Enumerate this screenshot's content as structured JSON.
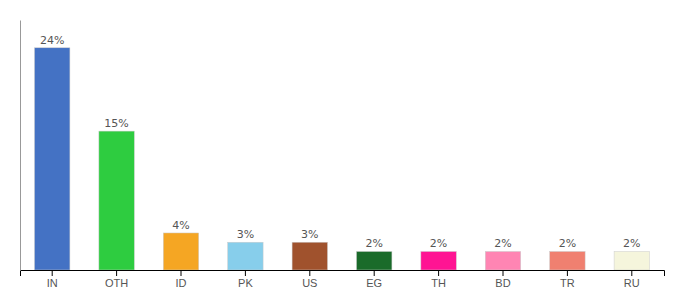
{
  "chart_data": {
    "type": "bar",
    "categories": [
      "IN",
      "OTH",
      "ID",
      "PK",
      "US",
      "EG",
      "TH",
      "BD",
      "TR",
      "RU"
    ],
    "values": [
      24,
      15,
      4,
      3,
      3,
      2,
      2,
      2,
      2,
      2
    ],
    "value_labels": [
      "24%",
      "15%",
      "4%",
      "3%",
      "3%",
      "2%",
      "2%",
      "2%",
      "2%",
      "2%"
    ],
    "colors": [
      "#4472c4",
      "#2ecc40",
      "#f5a623",
      "#87ceeb",
      "#a0522d",
      "#1a6b2a",
      "#ff1493",
      "#ff85b3",
      "#f08070",
      "#f5f5dc"
    ],
    "ylim": [
      0,
      27
    ],
    "data_labels": true,
    "tick_labels": "x",
    "grid": false
  }
}
